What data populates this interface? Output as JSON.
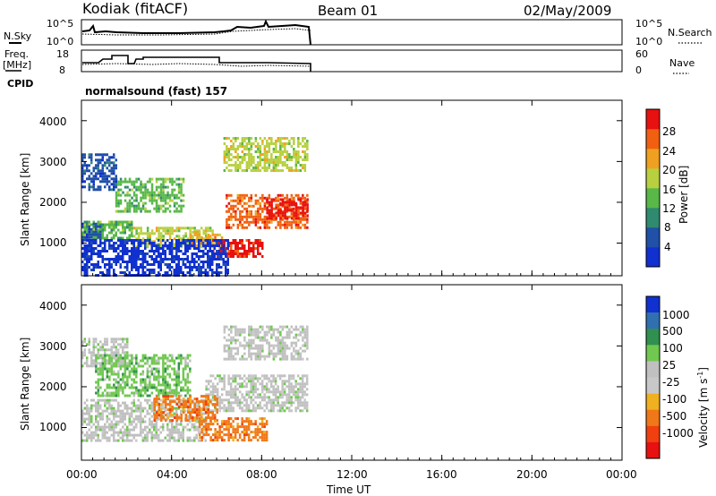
{
  "header": {
    "station": "Kodiak (fitACF)",
    "beam": "Beam 01",
    "date": "02/May/2009"
  },
  "top_panels": {
    "nsky_label": "N.Sky",
    "nsky_ticks": [
      "10^5",
      "10^0"
    ],
    "nsearch_label": "N.Search",
    "nsearch_ticks": [
      "10^5",
      "10^0"
    ],
    "freq_label": "Freq.",
    "freq_unit": "[MHz]",
    "freq_ticks": [
      "18",
      "8"
    ],
    "nave_label": "Nave",
    "nave_ticks": [
      "60",
      "0"
    ],
    "cpid_label": "CPID",
    "cpid_value": "normalsound (fast) 157"
  },
  "chart_data": [
    {
      "type": "heatmap",
      "name": "power",
      "ylabel": "Slant Range [km]",
      "yticks": [
        "1000",
        "2000",
        "3000",
        "4000"
      ],
      "ylim": [
        200,
        4500
      ],
      "xlim_hours": [
        0,
        24
      ],
      "colorbar_label": "Power [dB]",
      "colorbar_ticks": [
        "4",
        "8",
        "12",
        "16",
        "20",
        "24",
        "28"
      ],
      "colorbar_colors": [
        "#1030d0",
        "#2050a8",
        "#308a70",
        "#58b848",
        "#b8d040",
        "#f0a020",
        "#f06010",
        "#e81010"
      ],
      "data_end_hour": 10.0,
      "regions": [
        {
          "t0": 0.0,
          "t1": 2.2,
          "r0": 1150,
          "r1": 1550,
          "level": 3
        },
        {
          "t0": 0.0,
          "t1": 0.8,
          "r0": 1100,
          "r1": 1500,
          "level": 1
        },
        {
          "t0": 2.2,
          "t1": 5.8,
          "r0": 900,
          "r1": 1400,
          "level": 4
        },
        {
          "t0": 4.8,
          "t1": 6.2,
          "r0": 950,
          "r1": 1300,
          "level": 5
        },
        {
          "t0": 5.8,
          "t1": 8.0,
          "r0": 700,
          "r1": 1100,
          "level": 7
        },
        {
          "t0": 6.4,
          "t1": 10.0,
          "r0": 1400,
          "r1": 2200,
          "level": 6
        },
        {
          "t0": 8.2,
          "t1": 10.0,
          "r0": 1600,
          "r1": 2100,
          "level": 7
        },
        {
          "t0": 1.5,
          "t1": 4.5,
          "r0": 1800,
          "r1": 2600,
          "level": 3
        },
        {
          "t0": 0.0,
          "t1": 1.5,
          "r0": 2300,
          "r1": 3200,
          "level": 1
        },
        {
          "t0": 6.3,
          "t1": 10.0,
          "r0": 2800,
          "r1": 3600,
          "level": 4
        },
        {
          "t0": 0.0,
          "t1": 6.5,
          "r0": 200,
          "r1": 1100,
          "level": 0
        }
      ]
    },
    {
      "type": "heatmap",
      "name": "velocity",
      "ylabel": "Slant Range [km]",
      "yticks": [
        "1000",
        "2000",
        "3000",
        "4000"
      ],
      "ylim": [
        200,
        4500
      ],
      "xlim_hours": [
        0,
        24
      ],
      "colorbar_label": "Velocity [m s",
      "colorbar_label_sup": "-1",
      "colorbar_ticks": [
        "1000",
        "500",
        "100",
        "25",
        "-25",
        "-100",
        "-500",
        "-1000"
      ],
      "colorbar_colors": [
        "#1030d0",
        "#3070b0",
        "#309050",
        "#70c850",
        "#c0c0c0",
        "#c8c8c8",
        "#f0b020",
        "#f07818",
        "#f04010",
        "#e81010"
      ],
      "data_end_hour": 10.0,
      "regions": [
        {
          "t0": 0.0,
          "t1": 5.5,
          "r0": 700,
          "r1": 1700,
          "level": 4
        },
        {
          "t0": 5.5,
          "t1": 10.0,
          "r0": 1400,
          "r1": 2300,
          "level": 4
        },
        {
          "t0": 0.0,
          "t1": 2.0,
          "r0": 2500,
          "r1": 3200,
          "level": 4
        },
        {
          "t0": 0.6,
          "t1": 4.8,
          "r0": 1800,
          "r1": 2800,
          "level": 3
        },
        {
          "t0": 3.2,
          "t1": 6.0,
          "r0": 1200,
          "r1": 1800,
          "level": 7
        },
        {
          "t0": 5.2,
          "t1": 8.2,
          "r0": 700,
          "r1": 1250,
          "level": 7
        },
        {
          "t0": 6.3,
          "t1": 10.0,
          "r0": 2700,
          "r1": 3500,
          "level": 4
        }
      ]
    }
  ],
  "x_axis": {
    "label": "Time UT",
    "ticks": [
      "00:00",
      "04:00",
      "08:00",
      "12:00",
      "16:00",
      "20:00",
      "00:00"
    ]
  }
}
